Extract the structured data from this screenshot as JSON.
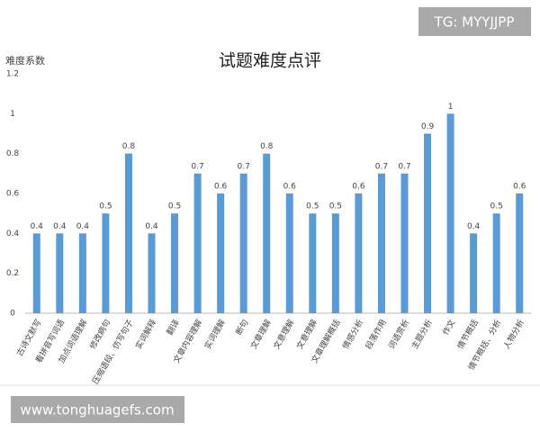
{
  "chart_data": {
    "type": "bar",
    "title": "试题难度点评",
    "y_label": "难度系数",
    "categories": [
      "古诗文默写",
      "看拼音写词语",
      "加点词语理解",
      "修改病句",
      "压缩语段、仿写句子",
      "实词解释",
      "翻译",
      "文章内容理解",
      "实词理解",
      "断句",
      "文章理解",
      "文意理解",
      "文意理解",
      "文章理解概括",
      "情感分析",
      "段落作用",
      "词语赏析",
      "主题分析",
      "作文",
      "情节概括",
      "情节概括、分析",
      "人物分析"
    ],
    "values": [
      0.4,
      0.4,
      0.4,
      0.5,
      0.8,
      0.4,
      0.5,
      0.7,
      0.6,
      0.7,
      0.8,
      0.6,
      0.5,
      0.5,
      0.6,
      0.7,
      0.7,
      0.9,
      1,
      0.4,
      0.5,
      0.6
    ],
    "color": "#5b9bd5",
    "ylim": [
      0,
      1.2
    ],
    "yticks": [
      0,
      0.2,
      0.4,
      0.6,
      0.8,
      1,
      1.2
    ],
    "grid": false
  },
  "watermarks": {
    "top_right": "TG: MYYJJPP",
    "bottom_left": "www.tonghuagefs.com"
  }
}
